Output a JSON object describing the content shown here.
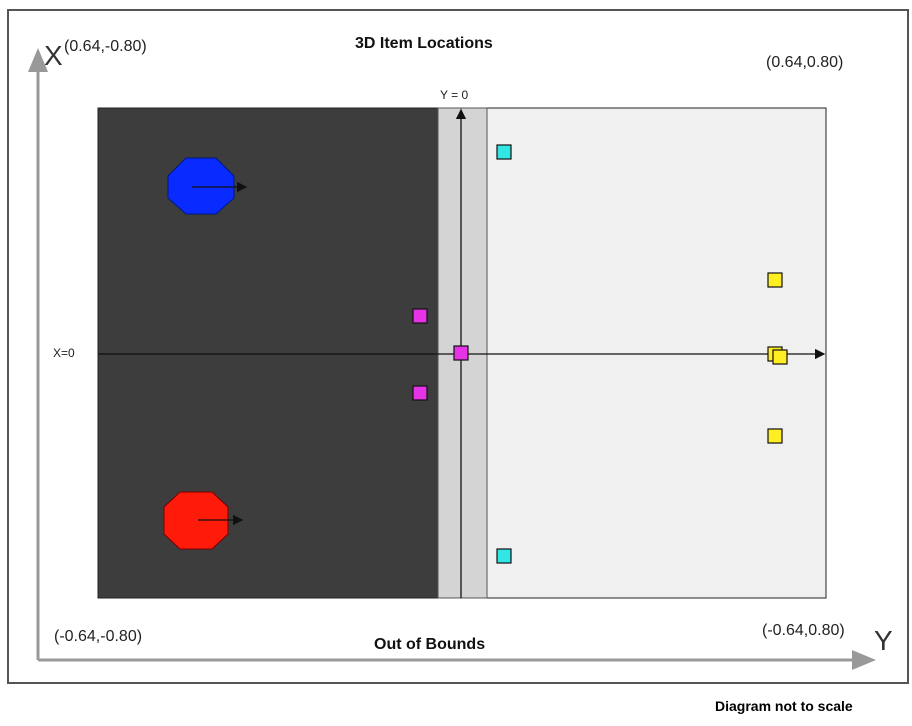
{
  "title": "3D Item Locations",
  "axes": {
    "x_letter": "X",
    "y_letter": "Y",
    "x_zero_label": "X=0",
    "y_zero_label": "Y = 0"
  },
  "corners": {
    "top_left": "(0.64,-0.80)",
    "top_right": "(0.64,0.80)",
    "bottom_left": "(-0.64,-0.80)",
    "bottom_right": "(-0.64,0.80)"
  },
  "out_of_bounds_label": "Out of Bounds",
  "footer_note": "Diagram not to scale",
  "colors": {
    "dark_zone": "#3d3d3d",
    "light_zone": "#f0f0f0",
    "strip": "#d4d4d4",
    "blue_robot": "#0a2bff",
    "red_robot": "#ff1a0a",
    "cyan_item": "#33e6e6",
    "magenta_item": "#e633e6",
    "yellow_item": "#ffee22"
  },
  "robots": [
    {
      "name": "blue-robot",
      "color": "blue_robot",
      "icon": "octagon-robot-icon"
    },
    {
      "name": "red-robot",
      "color": "red_robot",
      "icon": "octagon-robot-icon"
    }
  ],
  "items": [
    {
      "name": "cyan-item-top",
      "color": "cyan_item"
    },
    {
      "name": "cyan-item-bottom",
      "color": "cyan_item"
    },
    {
      "name": "magenta-item-upper",
      "color": "magenta_item"
    },
    {
      "name": "magenta-item-center",
      "color": "magenta_item"
    },
    {
      "name": "magenta-item-lower",
      "color": "magenta_item"
    },
    {
      "name": "yellow-item-upper",
      "color": "yellow_item"
    },
    {
      "name": "yellow-item-center-a",
      "color": "yellow_item"
    },
    {
      "name": "yellow-item-center-b",
      "color": "yellow_item"
    },
    {
      "name": "yellow-item-lower",
      "color": "yellow_item"
    }
  ]
}
